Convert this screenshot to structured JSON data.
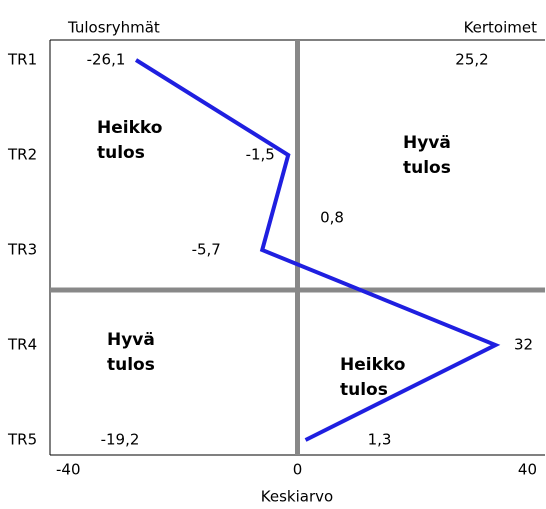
{
  "chart_data": {
    "type": "line",
    "y_axis_title": "Tulosryhmät",
    "y2_axis_title": "Kertoimet",
    "x_axis_title": "Keskiarvo",
    "categories": [
      "TR1",
      "TR2",
      "TR3",
      "TR4",
      "TR5"
    ],
    "series": [
      {
        "name": null,
        "color": "#1f1fe0",
        "values": [
          -26.1,
          -1.5,
          -5.7,
          32,
          1.3
        ],
        "value_labels": [
          "-26,1",
          "-1,5",
          "-5,7",
          "32",
          "1,3"
        ]
      }
    ],
    "xlim": [
      -40,
      40
    ],
    "xticks": [
      -40,
      0,
      40
    ],
    "annotations": [
      "25,2",
      "-19,2",
      "0,8"
    ],
    "quadrant_labels": [
      {
        "lines": [
          "Heikko",
          "tulos"
        ]
      },
      {
        "lines": [
          "Hyvä",
          "tulos"
        ]
      },
      {
        "lines": [
          "Hyvä",
          "tulos"
        ]
      },
      {
        "lines": [
          "Heikko",
          "tulos"
        ]
      }
    ]
  }
}
